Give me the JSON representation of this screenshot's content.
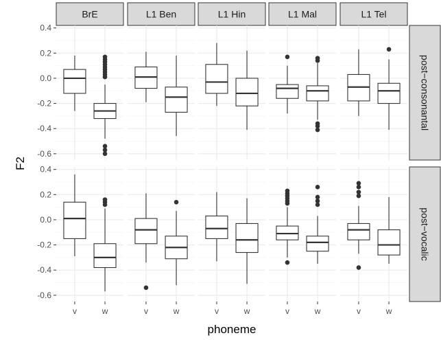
{
  "chart_data": {
    "type": "boxplot",
    "xlabel": "phoneme",
    "ylabel": "F2",
    "ylim": [
      -0.65,
      0.42
    ],
    "yticks": [
      0.4,
      0.2,
      0.0,
      -0.2,
      -0.4,
      -0.6
    ],
    "ytick_labels": [
      "0.4",
      "0.2",
      "0.0",
      "-0.2",
      "-0.4",
      "-0.6"
    ],
    "x_categories": [
      "v",
      "w"
    ],
    "facet_columns": [
      "BrE",
      "L1 Ben",
      "L1 Hin",
      "L1 Mal",
      "L1 Tel"
    ],
    "facet_rows": [
      "post−consonantal",
      "post−vocalic"
    ],
    "grid": true,
    "colors": {
      "strip_fill": "#d9d9d9",
      "strip_border": "#333333",
      "grid_major": "#ebebeb",
      "grid_minor": "#f5f5f5",
      "box_stroke": "#333333",
      "outlier_fill": "#333333"
    },
    "panels": [
      {
        "row": "post−consonantal",
        "column": "BrE",
        "boxes": [
          {
            "x": "v",
            "whisker_low": -0.26,
            "q1": -0.12,
            "median": 0.0,
            "q3": 0.07,
            "whisker_high": 0.18,
            "outliers": []
          },
          {
            "x": "w",
            "whisker_low": -0.48,
            "q1": -0.32,
            "median": -0.26,
            "q3": -0.2,
            "whisker_high": -0.05,
            "outliers": [
              0.17,
              0.15,
              0.13,
              0.11,
              0.09,
              0.07,
              0.05,
              0.03,
              0.01,
              -0.54,
              -0.57,
              -0.6
            ]
          }
        ]
      },
      {
        "row": "post−consonantal",
        "column": "L1 Ben",
        "boxes": [
          {
            "x": "v",
            "whisker_low": -0.19,
            "q1": -0.08,
            "median": 0.01,
            "q3": 0.09,
            "whisker_high": 0.21,
            "outliers": []
          },
          {
            "x": "w",
            "whisker_low": -0.46,
            "q1": -0.27,
            "median": -0.15,
            "q3": -0.07,
            "whisker_high": 0.18,
            "outliers": []
          }
        ]
      },
      {
        "row": "post−consonantal",
        "column": "L1 Hin",
        "boxes": [
          {
            "x": "v",
            "whisker_low": -0.22,
            "q1": -0.12,
            "median": -0.03,
            "q3": 0.11,
            "whisker_high": 0.28,
            "outliers": []
          },
          {
            "x": "w",
            "whisker_low": -0.41,
            "q1": -0.22,
            "median": -0.12,
            "q3": 0.0,
            "whisker_high": 0.22,
            "outliers": []
          }
        ]
      },
      {
        "row": "post−consonantal",
        "column": "L1 Mal",
        "boxes": [
          {
            "x": "v",
            "whisker_low": -0.28,
            "q1": -0.16,
            "median": -0.08,
            "q3": -0.05,
            "whisker_high": 0.1,
            "outliers": [
              0.17
            ]
          },
          {
            "x": "w",
            "whisker_low": -0.33,
            "q1": -0.18,
            "median": -0.1,
            "q3": -0.06,
            "whisker_high": 0.12,
            "outliers": [
              0.16,
              0.14,
              -0.36,
              -0.38,
              -0.41
            ]
          }
        ]
      },
      {
        "row": "post−consonantal",
        "column": "L1 Tel",
        "boxes": [
          {
            "x": "v",
            "whisker_low": -0.3,
            "q1": -0.18,
            "median": -0.07,
            "q3": 0.03,
            "whisker_high": 0.23,
            "outliers": []
          },
          {
            "x": "w",
            "whisker_low": -0.41,
            "q1": -0.2,
            "median": -0.1,
            "q3": -0.04,
            "whisker_high": 0.15,
            "outliers": [
              0.23
            ]
          }
        ]
      },
      {
        "row": "post−vocalic",
        "column": "BrE",
        "boxes": [
          {
            "x": "v",
            "whisker_low": -0.29,
            "q1": -0.15,
            "median": 0.01,
            "q3": 0.14,
            "whisker_high": 0.36,
            "outliers": []
          },
          {
            "x": "w",
            "whisker_low": -0.57,
            "q1": -0.38,
            "median": -0.3,
            "q3": -0.19,
            "whisker_high": 0.09,
            "outliers": [
              0.16,
              0.14,
              0.12
            ]
          }
        ]
      },
      {
        "row": "post−vocalic",
        "column": "L1 Ben",
        "boxes": [
          {
            "x": "v",
            "whisker_low": -0.34,
            "q1": -0.19,
            "median": -0.08,
            "q3": 0.01,
            "whisker_high": 0.21,
            "outliers": [
              -0.54
            ]
          },
          {
            "x": "w",
            "whisker_low": -0.52,
            "q1": -0.31,
            "median": -0.22,
            "q3": -0.13,
            "whisker_high": 0.07,
            "outliers": [
              0.14
            ]
          }
        ]
      },
      {
        "row": "post−vocalic",
        "column": "L1 Hin",
        "boxes": [
          {
            "x": "v",
            "whisker_low": -0.33,
            "q1": -0.15,
            "median": -0.07,
            "q3": 0.03,
            "whisker_high": 0.22,
            "outliers": []
          },
          {
            "x": "w",
            "whisker_low": -0.51,
            "q1": -0.26,
            "median": -0.16,
            "q3": -0.03,
            "whisker_high": 0.17,
            "outliers": []
          }
        ]
      },
      {
        "row": "post−vocalic",
        "column": "L1 Mal",
        "boxes": [
          {
            "x": "v",
            "whisker_low": -0.3,
            "q1": -0.16,
            "median": -0.11,
            "q3": -0.05,
            "whisker_high": 0.1,
            "outliers": [
              0.23,
              0.21,
              0.19,
              0.17,
              0.15,
              0.13,
              -0.34
            ]
          },
          {
            "x": "w",
            "whisker_low": -0.35,
            "q1": -0.25,
            "median": -0.18,
            "q3": -0.13,
            "whisker_high": 0.03,
            "outliers": [
              0.26,
              0.18,
              0.15,
              0.12
            ]
          }
        ]
      },
      {
        "row": "post−vocalic",
        "column": "L1 Tel",
        "boxes": [
          {
            "x": "v",
            "whisker_low": -0.27,
            "q1": -0.16,
            "median": -0.08,
            "q3": -0.03,
            "whisker_high": 0.11,
            "outliers": [
              0.29,
              0.26,
              0.22,
              0.19,
              -0.38
            ]
          },
          {
            "x": "w",
            "whisker_low": -0.35,
            "q1": -0.28,
            "median": -0.2,
            "q3": -0.08,
            "whisker_high": 0.18,
            "outliers": []
          }
        ]
      }
    ]
  }
}
